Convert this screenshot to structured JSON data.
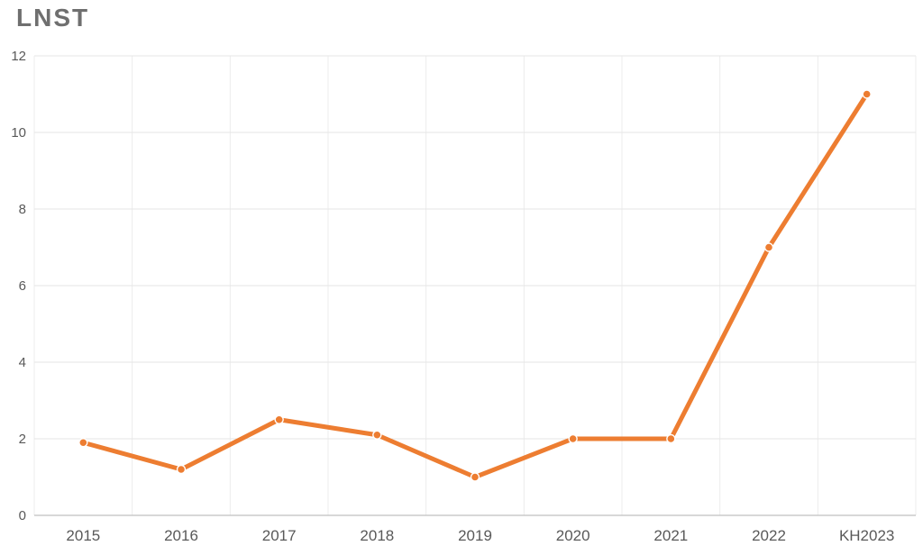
{
  "chart_data": {
    "type": "line",
    "title": "LNST",
    "categories": [
      "2015",
      "2016",
      "2017",
      "2018",
      "2019",
      "2020",
      "2021",
      "2022",
      "KH2023"
    ],
    "values": [
      1.9,
      1.2,
      2.5,
      2.1,
      1.0,
      2.0,
      2.0,
      7.0,
      11.0
    ],
    "xlabel": "",
    "ylabel": "",
    "ylim": [
      0,
      12
    ],
    "ytick_step": 2,
    "grid": true,
    "legend": "none",
    "colors": {
      "line": "#ED7D31",
      "marker_fill": "#ED7D31",
      "marker_stroke": "#FFFFFF",
      "h_gridline": "#E6E6E6",
      "v_gridline": "#ECECEC",
      "axis_line": "#C0C0C0",
      "tick_label": "#595959",
      "title": "#6F6F6F",
      "background": "#FFFFFF"
    }
  }
}
